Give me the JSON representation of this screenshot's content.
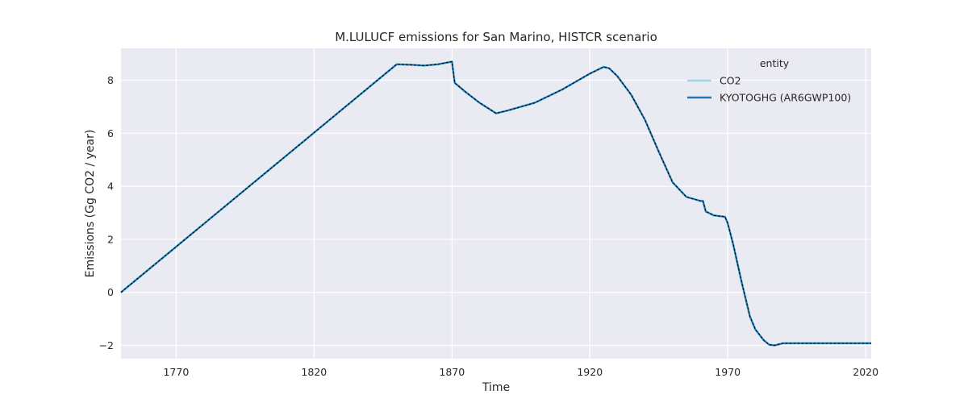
{
  "chart_data": {
    "type": "line",
    "title": "M.LULUCF emissions for San Marino, HISTCR scenario",
    "xlabel": "Time",
    "ylabel": "Emissions (Gg CO2 / year)",
    "xlim": [
      1750,
      2022
    ],
    "ylim": [
      -2.5,
      9.2
    ],
    "xticks": [
      1770,
      1820,
      1870,
      1920,
      1970,
      2020
    ],
    "yticks": [
      -2,
      0,
      2,
      4,
      6,
      8
    ],
    "grid": true,
    "legend": {
      "title": "entity",
      "placement": "top-right",
      "entries": [
        "CO2",
        "KYOTOGHG (AR6GWP100)"
      ]
    },
    "series": [
      {
        "name": "CO2",
        "color": "#9fd8e8",
        "x": [
          1750,
          1850,
          1855,
          1860,
          1865,
          1870,
          1871,
          1875,
          1880,
          1886,
          1890,
          1900,
          1910,
          1920,
          1925,
          1927,
          1930,
          1935,
          1940,
          1945,
          1950,
          1955,
          1960,
          1961,
          1962,
          1965,
          1969,
          1970,
          1972,
          1975,
          1978,
          1980,
          1983,
          1985,
          1987,
          1990,
          2000,
          2010,
          2022
        ],
        "y": [
          0.0,
          8.6,
          8.58,
          8.55,
          8.6,
          8.7,
          7.9,
          7.55,
          7.15,
          6.75,
          6.85,
          7.15,
          7.65,
          8.25,
          8.5,
          8.45,
          8.15,
          7.45,
          6.5,
          5.3,
          4.15,
          3.6,
          3.45,
          3.45,
          3.05,
          2.9,
          2.85,
          2.6,
          1.8,
          0.4,
          -0.9,
          -1.4,
          -1.8,
          -1.97,
          -2.0,
          -1.92,
          -1.92,
          -1.92,
          -1.92
        ]
      },
      {
        "name": "KYOTOGHG (AR6GWP100)",
        "color": "#1f77b4",
        "x": [
          1750,
          1850,
          1855,
          1860,
          1865,
          1870,
          1871,
          1875,
          1880,
          1886,
          1890,
          1900,
          1910,
          1920,
          1925,
          1927,
          1930,
          1935,
          1940,
          1945,
          1950,
          1955,
          1960,
          1961,
          1962,
          1965,
          1969,
          1970,
          1972,
          1975,
          1978,
          1980,
          1983,
          1985,
          1987,
          1990,
          2000,
          2010,
          2022
        ],
        "y": [
          0.0,
          8.6,
          8.58,
          8.55,
          8.6,
          8.7,
          7.9,
          7.55,
          7.15,
          6.75,
          6.85,
          7.15,
          7.65,
          8.25,
          8.5,
          8.45,
          8.15,
          7.45,
          6.5,
          5.3,
          4.15,
          3.6,
          3.45,
          3.45,
          3.05,
          2.9,
          2.85,
          2.6,
          1.8,
          0.4,
          -0.9,
          -1.4,
          -1.8,
          -1.97,
          -2.0,
          -1.92,
          -1.92,
          -1.92,
          -1.92
        ]
      }
    ]
  }
}
